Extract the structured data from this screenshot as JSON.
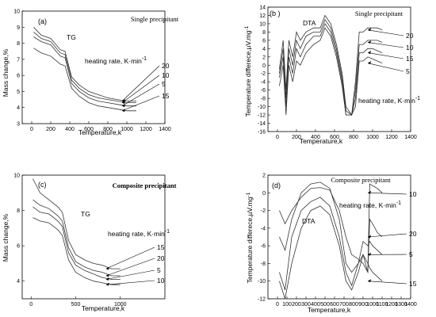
{
  "chart_data": [
    {
      "type": "line",
      "letter": "(a)",
      "title": "Single precipitant",
      "annotation": "TG",
      "rate_label": "heating rate, K·min",
      "rate_sup": "-1",
      "xlabel": "Temperature,k",
      "ylabel": "Mass change,%",
      "xlim": [
        -100,
        1400
      ],
      "ylim": [
        3,
        10
      ],
      "xticks": [
        0,
        200,
        400,
        600,
        800,
        1000,
        1200,
        1400
      ],
      "yticks": [
        3,
        4,
        5,
        6,
        7,
        8,
        9,
        10
      ],
      "legend_order": [
        "20",
        "10",
        "5",
        "15"
      ],
      "series": [
        {
          "name": "20",
          "x": [
            20,
            100,
            200,
            300,
            350,
            420,
            500,
            600,
            700,
            800,
            900,
            1000,
            1100
          ],
          "y": [
            9.0,
            8.5,
            8.3,
            7.6,
            7.5,
            5.9,
            5.4,
            5.0,
            4.8,
            4.6,
            4.5,
            4.4,
            4.4
          ]
        },
        {
          "name": "10",
          "x": [
            20,
            100,
            200,
            300,
            350,
            420,
            500,
            600,
            700,
            800,
            900,
            1000,
            1100
          ],
          "y": [
            8.7,
            8.3,
            8.1,
            7.4,
            7.3,
            5.7,
            5.2,
            4.8,
            4.6,
            4.5,
            4.4,
            4.3,
            4.3
          ]
        },
        {
          "name": "5",
          "x": [
            20,
            100,
            200,
            300,
            350,
            420,
            500,
            600,
            700,
            800,
            900,
            1000,
            1100
          ],
          "y": [
            8.4,
            8.1,
            7.9,
            7.2,
            7.1,
            5.5,
            5.0,
            4.6,
            4.4,
            4.3,
            4.2,
            4.1,
            4.1
          ]
        },
        {
          "name": "15",
          "x": [
            20,
            100,
            200,
            300,
            350,
            420,
            500,
            600,
            700,
            800,
            900,
            1000,
            1100
          ],
          "y": [
            7.7,
            7.4,
            7.2,
            6.7,
            6.6,
            5.2,
            4.7,
            4.3,
            4.1,
            4.0,
            3.9,
            3.8,
            3.8
          ]
        }
      ]
    },
    {
      "type": "line",
      "letter": "(b )",
      "title": "Single precipitant",
      "annotation": "DTA",
      "rate_label": "heating rate, K·min",
      "rate_sup": "-1",
      "xlabel": "Temperature,k",
      "ylabel": "Temperature differece,µV.mg",
      "ylabel_sup": "-1",
      "xlim": [
        -100,
        1400
      ],
      "ylim": [
        -16,
        14
      ],
      "xticks": [
        0,
        200,
        400,
        600,
        800,
        1000,
        1200,
        1400
      ],
      "yticks": [
        -16,
        -14,
        -12,
        -10,
        -8,
        -6,
        -4,
        -2,
        0,
        2,
        4,
        6,
        8,
        10,
        12,
        14
      ],
      "legend_order": [
        "20",
        "10",
        "15",
        "5"
      ],
      "series": [
        {
          "name": "20",
          "x": [
            20,
            60,
            90,
            120,
            160,
            200,
            240,
            300,
            380,
            450,
            500,
            560,
            620,
            680,
            720,
            780,
            820,
            860,
            900,
            950,
            1000,
            1050,
            1100
          ],
          "y": [
            -1,
            6,
            -6,
            6,
            2,
            8,
            6,
            8,
            9,
            9,
            12,
            10,
            5,
            -2,
            -10,
            -12,
            -4,
            8,
            8,
            9,
            9,
            9,
            8.5
          ]
        },
        {
          "name": "10",
          "x": [
            20,
            60,
            90,
            120,
            160,
            200,
            240,
            300,
            380,
            450,
            500,
            560,
            620,
            680,
            720,
            780,
            820,
            860,
            900,
            950,
            1000,
            1050,
            1100
          ],
          "y": [
            -2,
            4,
            -8,
            4,
            0,
            6,
            4,
            7,
            8,
            8,
            11,
            9,
            4,
            -3,
            -11,
            -12,
            -6,
            5,
            5,
            6,
            6,
            6,
            5.5
          ]
        },
        {
          "name": "15",
          "x": [
            20,
            60,
            90,
            120,
            160,
            200,
            240,
            300,
            380,
            450,
            500,
            560,
            620,
            680,
            720,
            780,
            820,
            860,
            900,
            950,
            1000,
            1050,
            1100
          ],
          "y": [
            -3,
            2,
            -10,
            2,
            -2,
            4,
            2,
            5,
            7,
            7,
            10,
            8,
            3,
            -4,
            -12,
            -12,
            -8,
            3,
            3,
            4,
            4,
            3.5,
            3
          ]
        },
        {
          "name": "5",
          "x": [
            20,
            60,
            90,
            120,
            160,
            200,
            240,
            300,
            380,
            450,
            500,
            560,
            620,
            680,
            720,
            780,
            820,
            860,
            900,
            950,
            1000,
            1050,
            1100
          ],
          "y": [
            -5,
            0,
            -12,
            0,
            -4,
            1,
            0,
            3,
            5,
            6,
            9,
            7,
            2,
            -5,
            -12,
            -12,
            -10,
            1,
            1,
            2,
            1.5,
            1,
            0.5
          ]
        }
      ]
    },
    {
      "type": "line",
      "letter": "(c)",
      "title": "Composite precipitant",
      "annotation": "TG",
      "rate_label": "heating rate, K·min",
      "rate_sup": "-1",
      "xlabel": "Temperature,k",
      "ylabel": "Mass change,%",
      "xlim": [
        -100,
        1500
      ],
      "ylim": [
        3,
        10
      ],
      "xticks": [
        0,
        500,
        1000
      ],
      "yticks": [
        4,
        6,
        8,
        10
      ],
      "legend_order": [
        "15",
        "20",
        "5",
        "10"
      ],
      "series": [
        {
          "name": "15",
          "x": [
            20,
            100,
            200,
            300,
            350,
            420,
            500,
            600,
            700,
            800,
            900,
            1000
          ],
          "y": [
            9.8,
            9.0,
            8.6,
            8.2,
            7.9,
            6.3,
            5.5,
            5.2,
            5.0,
            4.9,
            4.7,
            4.7
          ]
        },
        {
          "name": "20",
          "x": [
            20,
            100,
            200,
            300,
            350,
            420,
            500,
            600,
            700,
            800,
            900,
            1000
          ],
          "y": [
            8.6,
            8.3,
            8.1,
            7.7,
            7.4,
            5.9,
            5.1,
            4.8,
            4.6,
            4.5,
            4.3,
            4.3
          ]
        },
        {
          "name": "5",
          "x": [
            20,
            100,
            200,
            300,
            350,
            420,
            500,
            600,
            700,
            800,
            900,
            1000
          ],
          "y": [
            8.2,
            7.9,
            7.8,
            7.4,
            7.1,
            5.6,
            4.9,
            4.6,
            4.4,
            4.2,
            4.1,
            4.1
          ]
        },
        {
          "name": "10",
          "x": [
            20,
            100,
            200,
            300,
            350,
            420,
            500,
            600,
            700,
            800,
            900,
            1000
          ],
          "y": [
            7.6,
            7.4,
            7.3,
            6.9,
            6.6,
            5.2,
            4.5,
            4.2,
            4.0,
            3.9,
            3.8,
            3.8
          ]
        }
      ]
    },
    {
      "type": "line",
      "letter": "(d)",
      "title": "Composite precipitant",
      "annotation": "DTA",
      "rate_label": "heating rate, K·min",
      "rate_sup": "-1",
      "xlabel": "Temperature,k",
      "ylabel": "Temperature differece,µV.mg",
      "ylabel_sup": "-1",
      "xlim": [
        -100,
        1400
      ],
      "ylim": [
        -12,
        2
      ],
      "xticks": [
        0,
        100,
        200,
        300,
        400,
        500,
        600,
        700,
        800,
        900,
        1000,
        1100,
        1200,
        1300,
        1400
      ],
      "yticks": [
        -12,
        -10,
        -8,
        -6,
        -4,
        -2,
        0,
        2
      ],
      "legend_order": [
        "10",
        "20",
        "5",
        "15"
      ],
      "series": [
        {
          "name": "10",
          "x": [
            20,
            80,
            150,
            250,
            350,
            450,
            550,
            650,
            720,
            780,
            850,
            900,
            950,
            970,
            1000,
            1050,
            1100
          ],
          "y": [
            -2,
            -3.5,
            -2,
            -0.5,
            0.5,
            0.6,
            0.3,
            -2,
            -5,
            -7,
            -7.5,
            -8,
            -9,
            1,
            0.8,
            0.5,
            0
          ]
        },
        {
          "name": "20",
          "x": [
            20,
            80,
            150,
            250,
            350,
            450,
            550,
            650,
            720,
            780,
            850,
            900,
            950,
            970,
            1000,
            1050,
            1100
          ],
          "y": [
            -5,
            -6.5,
            -3,
            0,
            1,
            1.2,
            0.5,
            -3,
            -8,
            -9,
            -8,
            -7,
            -9,
            -3,
            -3.5,
            -4.5,
            -5
          ]
        },
        {
          "name": "5",
          "x": [
            20,
            80,
            150,
            250,
            350,
            450,
            550,
            650,
            720,
            780,
            850,
            900,
            950,
            970,
            1000,
            1050,
            1100
          ],
          "y": [
            -9,
            -11,
            -5,
            -2,
            -1,
            -0.5,
            -1.5,
            -5,
            -9,
            -10.5,
            -8,
            -5.5,
            -6,
            -5.5,
            -6,
            -6.5,
            -7
          ]
        },
        {
          "name": "15",
          "x": [
            20,
            80,
            150,
            250,
            350,
            450,
            550,
            650,
            720,
            780,
            850,
            900,
            950,
            970,
            1000,
            1050,
            1100
          ],
          "y": [
            -10,
            -12,
            -8,
            -4,
            -2,
            -1.5,
            -2.5,
            -6,
            -10,
            -11,
            -9,
            -7,
            -8,
            -8.5,
            -9,
            -9.5,
            -10
          ]
        }
      ]
    }
  ]
}
